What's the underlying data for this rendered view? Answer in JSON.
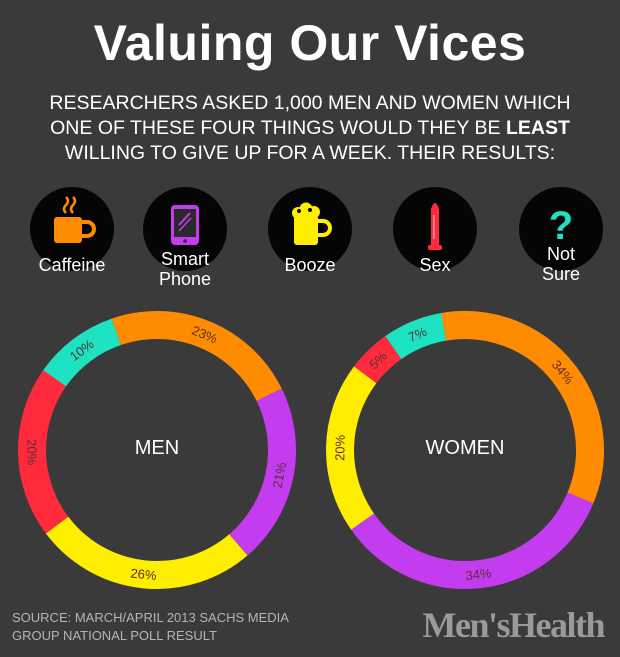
{
  "header": {
    "title": "Valuing Our Vices",
    "subtitle_before": "RESEARCHERS ASKED 1,000 MEN AND WOMEN WHICH ONE OF THESE FOUR THINGS WOULD THEY BE ",
    "subtitle_emphasis": "LEAST",
    "subtitle_after": " WILLING TO GIVE UP FOR A WEEK. THEIR RESULTS:"
  },
  "legend": [
    {
      "label_lines": [
        "Caffeine"
      ],
      "icon": "coffee-cup-icon",
      "color": "#ff8c00"
    },
    {
      "label_lines": [
        "Smart",
        "Phone"
      ],
      "icon": "smartphone-icon",
      "color": "#c43cf0"
    },
    {
      "label_lines": [
        "Booze"
      ],
      "icon": "beer-mug-icon",
      "color": "#ffee00"
    },
    {
      "label_lines": [
        "Sex"
      ],
      "icon": "condom-icon",
      "color": "#ff2a3c"
    },
    {
      "label_lines": [
        "Not",
        "Sure"
      ],
      "icon": "question-mark-icon",
      "color": "#1de3c3"
    }
  ],
  "chart_data": [
    {
      "type": "pie",
      "center_label": "MEN",
      "segments": [
        {
          "category": "Sex",
          "value": 20,
          "label": "20%",
          "color": "#ff2a3c"
        },
        {
          "category": "Not Sure",
          "value": 10,
          "label": "10%",
          "color": "#1de3c3"
        },
        {
          "category": "Caffeine",
          "value": 23,
          "label": "23%",
          "color": "#ff8c00"
        },
        {
          "category": "Smart Phone",
          "value": 21,
          "label": "21%",
          "color": "#c43cf0"
        },
        {
          "category": "Booze",
          "value": 26,
          "label": "26%",
          "color": "#ffee00"
        }
      ]
    },
    {
      "type": "pie",
      "center_label": "WOMEN",
      "segments": [
        {
          "category": "Booze",
          "value": 20,
          "label": "20%",
          "color": "#ffee00"
        },
        {
          "category": "Sex",
          "value": 5,
          "label": "5%",
          "color": "#ff2a3c"
        },
        {
          "category": "Not Sure",
          "value": 7,
          "label": "7%",
          "color": "#1de3c3"
        },
        {
          "category": "Caffeine",
          "value": 34,
          "label": "34%",
          "color": "#ff8c00"
        },
        {
          "category": "Smart Phone",
          "value": 34,
          "label": "34%",
          "color": "#c43cf0"
        }
      ]
    }
  ],
  "footer": {
    "source": "SOURCE: MARCH/APRIL 2013 SACHS MEDIA GROUP NATIONAL POLL RESULT",
    "logo": "Men'sHealth"
  }
}
